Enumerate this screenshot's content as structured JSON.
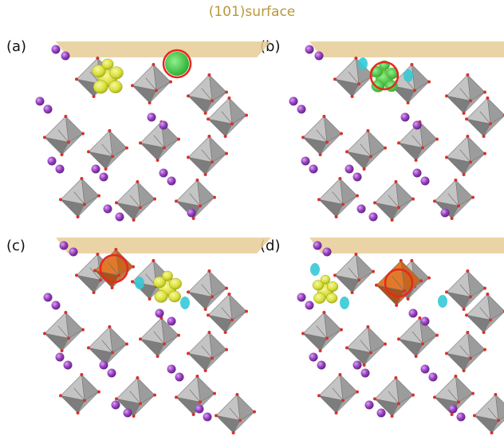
{
  "title": "(101)surface",
  "panels": [
    {
      "label": "(a)"
    },
    {
      "label": "(b)"
    },
    {
      "label": "(c)"
    },
    {
      "label": "(d)"
    }
  ]
}
